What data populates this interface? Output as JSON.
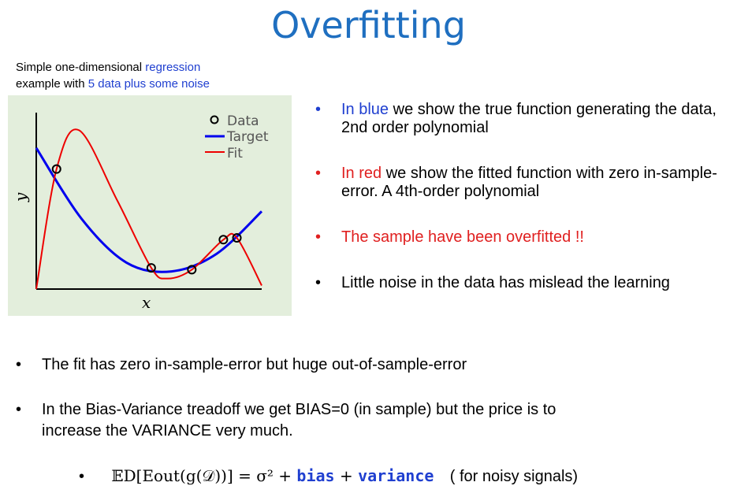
{
  "title": "Overfitting",
  "caption": {
    "line1_prefix": "Simple one-dimensional ",
    "line1_highlight": "regression",
    "line2_prefix": "example with ",
    "line2_highlight": "5 data plus some noise"
  },
  "chart_data": {
    "type": "line",
    "xlabel": "x",
    "ylabel": "y",
    "legend": [
      "Data",
      "Target",
      "Fit"
    ],
    "legend_placement": "top-right",
    "colors": {
      "target": "#0000ee",
      "fit": "#ee0000",
      "data": "#000000"
    },
    "data_points": [
      [
        0.09,
        0.68
      ],
      [
        0.51,
        0.12
      ],
      [
        0.69,
        0.11
      ],
      [
        0.83,
        0.28
      ],
      [
        0.89,
        0.29
      ]
    ],
    "target_series": [
      [
        0.0,
        0.8
      ],
      [
        0.2,
        0.4
      ],
      [
        0.4,
        0.15
      ],
      [
        0.6,
        0.1
      ],
      [
        0.8,
        0.2
      ],
      [
        1.0,
        0.44
      ]
    ],
    "fit_series": [
      [
        0.0,
        0.0
      ],
      [
        0.09,
        0.68
      ],
      [
        0.19,
        0.9
      ],
      [
        0.36,
        0.5
      ],
      [
        0.51,
        0.12
      ],
      [
        0.58,
        0.06
      ],
      [
        0.69,
        0.11
      ],
      [
        0.83,
        0.28
      ],
      [
        0.89,
        0.29
      ],
      [
        1.0,
        0.02
      ]
    ]
  },
  "right_bullets": [
    {
      "highlight": "In blue",
      "rest": " we show the true function generating the data, 2nd order polynomial"
    },
    {
      "highlight": "In red",
      "rest": " we show the fitted function with zero in-sample-error.  A 4th-order polynomial"
    },
    {
      "highlight": "The sample have been overfitted !!",
      "rest": ""
    },
    {
      "highlight": "",
      "rest": "Little noise in the data has mislead the learning"
    }
  ],
  "bottom_bullets": [
    "The fit has zero in-sample-error but  huge out-of-sample-error",
    "In the Bias-Variance treadoff we get BIAS=0 (in sample) but the price is to increase the VARIANCE very much."
  ],
  "formula": {
    "lhs": "𝔼D[Eout(g(𝒟))] = σ² + ",
    "bias": "bias",
    "plus": " + ",
    "variance": "variance",
    "note": "( for noisy signals)"
  },
  "bullet_char": "•"
}
